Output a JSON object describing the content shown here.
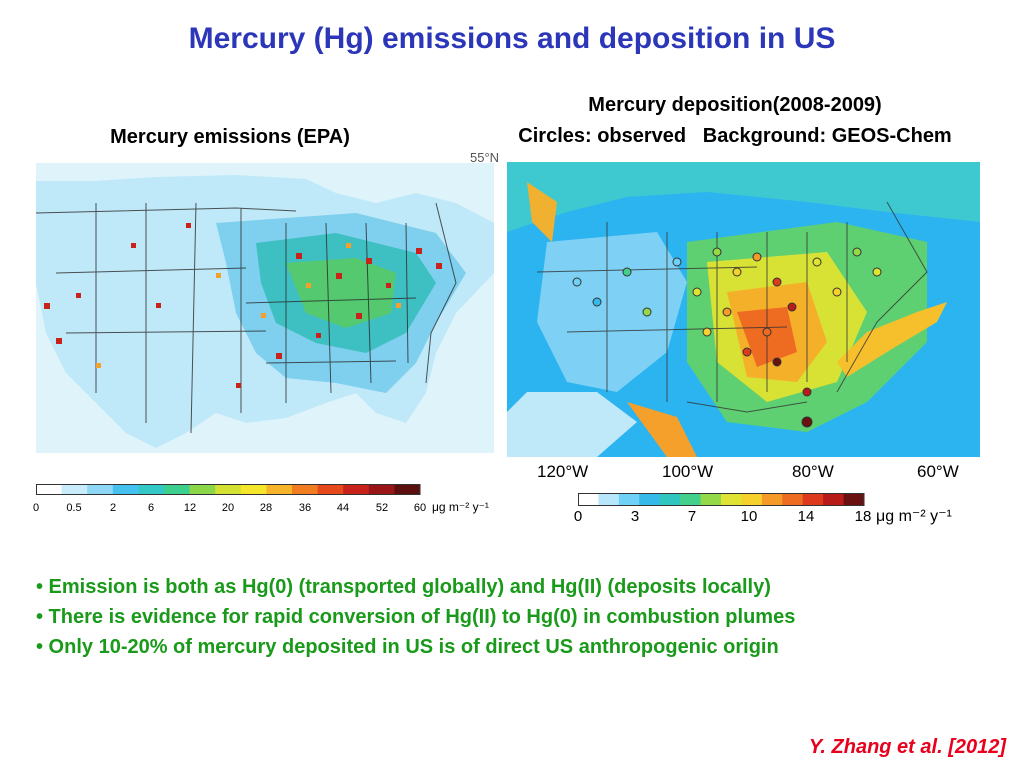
{
  "slide": {
    "title": "Mercury (Hg) emissions and deposition in US",
    "citation": "Y. Zhang et al. [2012]"
  },
  "left_panel": {
    "title": "Mercury emissions (EPA)",
    "colorbar": {
      "ticks": [
        "0",
        "0.5",
        "2",
        "6",
        "12",
        "20",
        "28",
        "36",
        "44",
        "52",
        "60"
      ],
      "unit": "μg m⁻² y⁻¹",
      "colors": [
        "#ffffff",
        "#c8ecfa",
        "#8fd7f7",
        "#44c1ef",
        "#33c7c5",
        "#3ccf8e",
        "#8cd64a",
        "#d2e132",
        "#f5e52b",
        "#f6b42a",
        "#f27c22",
        "#e64a1c",
        "#c8221a",
        "#9a1616",
        "#5c0f0f"
      ]
    }
  },
  "right_panel": {
    "title_line1": "Mercury deposition(2008-2009)",
    "title_line2": "Circles: observed   Background: GEOS-Chem",
    "corner_label": "55°N",
    "lon_labels": [
      "120°W",
      "100°W",
      "80°W",
      "60°W"
    ],
    "colorbar": {
      "ticks": [
        "0",
        "3",
        "7",
        "10",
        "14",
        "18"
      ],
      "unit": "μg m⁻² y⁻¹",
      "colors": [
        "#ffffff",
        "#b8e6fa",
        "#6fd1f5",
        "#34b9e8",
        "#2fc6c0",
        "#43d08a",
        "#93d948",
        "#dfe334",
        "#f6d02c",
        "#f59a28",
        "#ee6b22",
        "#dd3a1d",
        "#b81c1a",
        "#6a1010"
      ]
    }
  },
  "bullets": [
    "• Emission is both as Hg(0) (transported globally) and Hg(II) (deposits locally)",
    "• There is evidence for rapid conversion of Hg(II) to Hg(0) in combustion plumes",
    "• Only 10-20% of mercury deposited in US is of direct US anthropogenic origin"
  ]
}
